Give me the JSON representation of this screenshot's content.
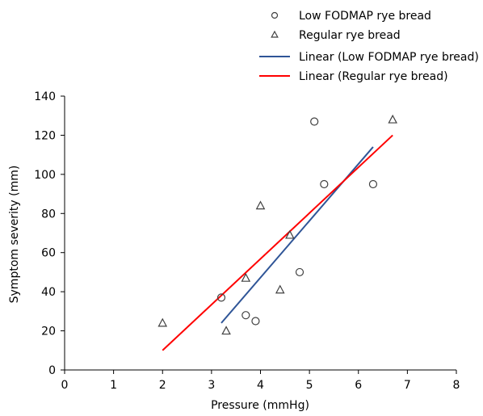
{
  "chart_data": {
    "type": "scatter",
    "title": "",
    "xlabel": "Pressure (mmHg)",
    "ylabel": "Symptom severity (mm)",
    "xlim": [
      0,
      8
    ],
    "ylim": [
      0,
      140
    ],
    "xticks": [
      "0",
      "1",
      "2",
      "3",
      "4",
      "5",
      "6",
      "7",
      "8"
    ],
    "yticks": [
      "0",
      "20",
      "40",
      "60",
      "80",
      "100",
      "120",
      "140"
    ],
    "grid": false,
    "legend_position": "top-right",
    "series": [
      {
        "name": "Low FODMAP rye bread",
        "marker": "circle",
        "color": "#404040",
        "points": [
          {
            "x": 3.2,
            "y": 37
          },
          {
            "x": 3.7,
            "y": 28
          },
          {
            "x": 3.9,
            "y": 25
          },
          {
            "x": 4.8,
            "y": 50
          },
          {
            "x": 5.1,
            "y": 127
          },
          {
            "x": 5.3,
            "y": 95
          },
          {
            "x": 6.3,
            "y": 95
          }
        ]
      },
      {
        "name": "Regular rye bread",
        "marker": "triangle",
        "color": "#404040",
        "points": [
          {
            "x": 2.0,
            "y": 24
          },
          {
            "x": 3.3,
            "y": 20
          },
          {
            "x": 3.7,
            "y": 47
          },
          {
            "x": 4.0,
            "y": 84
          },
          {
            "x": 4.4,
            "y": 41
          },
          {
            "x": 4.6,
            "y": 69
          },
          {
            "x": 6.7,
            "y": 128
          }
        ]
      }
    ],
    "trendlines": [
      {
        "name": "Linear (Low FODMAP rye bread)",
        "color": "#2F5597",
        "x": [
          3.2,
          6.3
        ],
        "y": [
          24,
          114
        ]
      },
      {
        "name": "Linear (Regular rye bread)",
        "color": "#FF0000",
        "x": [
          2.0,
          6.7
        ],
        "y": [
          10,
          120
        ]
      }
    ]
  }
}
